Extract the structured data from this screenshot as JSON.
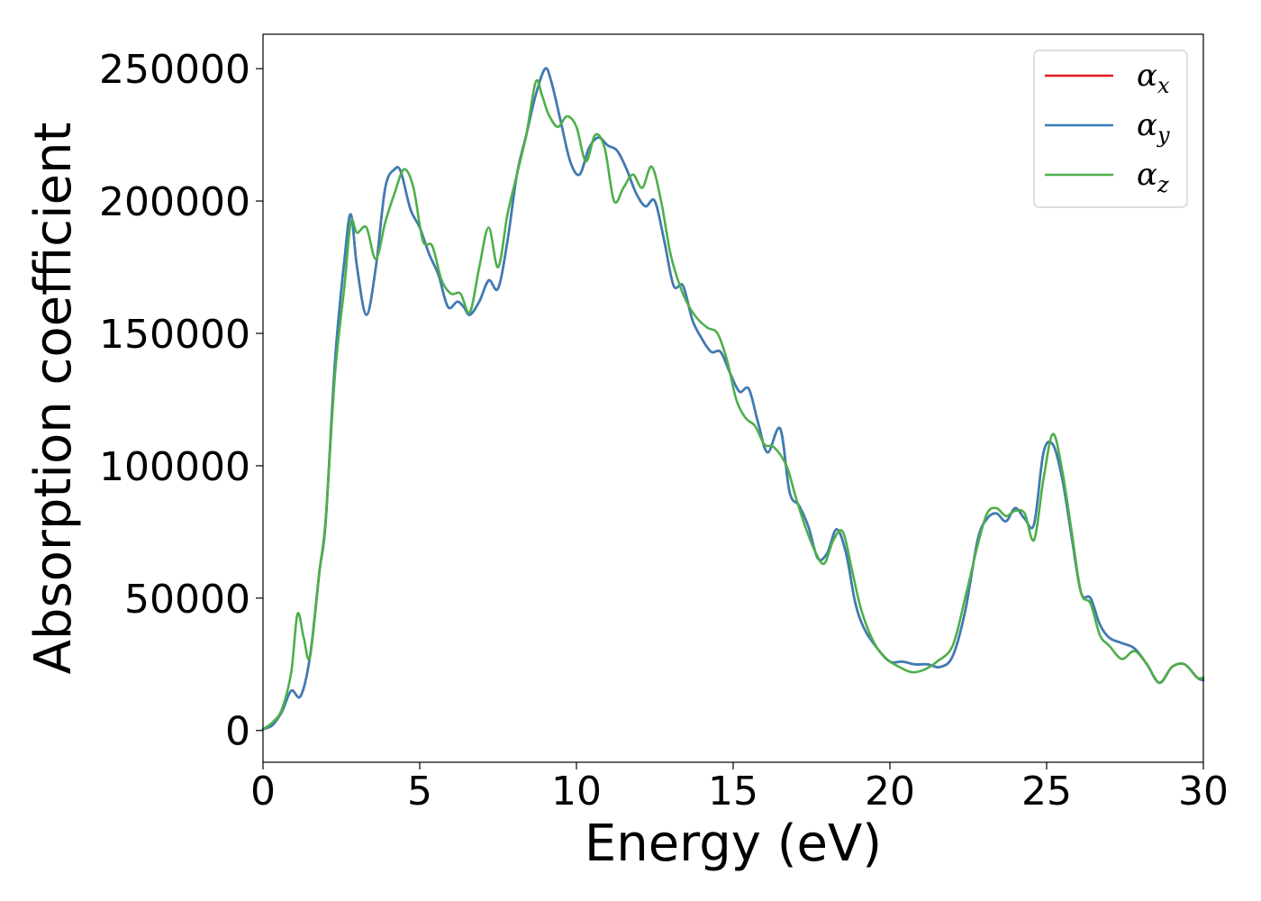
{
  "chart_data": {
    "type": "line",
    "title": "",
    "xlabel": "Energy (eV)",
    "ylabel": "Absorption coefficient",
    "xlim": [
      0,
      30
    ],
    "ylim": [
      -12000,
      263000
    ],
    "xticks": [
      0,
      5,
      10,
      15,
      20,
      25,
      30
    ],
    "yticks": [
      0,
      50000,
      100000,
      150000,
      200000,
      250000
    ],
    "grid": false,
    "legend_position": "top-right",
    "series": [
      {
        "name": "α",
        "sub": "x",
        "color": "#e41a1c",
        "x": [
          0,
          0.3,
          0.6,
          0.9,
          1.2,
          1.5,
          1.8,
          2.0,
          2.3,
          2.6,
          2.8,
          3.0,
          3.3,
          3.6,
          3.9,
          4.2,
          4.4,
          4.7,
          5.0,
          5.3,
          5.6,
          5.9,
          6.2,
          6.4,
          6.6,
          6.9,
          7.2,
          7.5,
          7.8,
          8.1,
          8.4,
          8.7,
          9.0,
          9.2,
          9.5,
          9.8,
          10.1,
          10.4,
          10.7,
          11.0,
          11.3,
          11.6,
          11.9,
          12.2,
          12.5,
          12.8,
          13.1,
          13.4,
          13.7,
          14.0,
          14.3,
          14.6,
          14.9,
          15.2,
          15.5,
          15.8,
          16.1,
          16.5,
          16.8,
          17.1,
          17.4,
          17.7,
          18.0,
          18.3,
          18.6,
          18.9,
          19.2,
          19.6,
          20.0,
          20.4,
          20.8,
          21.2,
          21.6,
          22.0,
          22.4,
          22.8,
          23.1,
          23.4,
          23.7,
          24.0,
          24.3,
          24.6,
          24.9,
          25.2,
          25.5,
          25.8,
          26.1,
          26.4,
          26.7,
          27.0,
          27.4,
          27.8,
          28.2,
          28.6,
          29.0,
          29.4,
          29.8,
          30.0
        ],
        "y": [
          500,
          2000,
          7000,
          15000,
          13000,
          28000,
          60000,
          79000,
          140000,
          178000,
          195000,
          175000,
          157000,
          175000,
          205000,
          212000,
          211000,
          197000,
          190000,
          180000,
          172000,
          160000,
          162000,
          160000,
          157000,
          162000,
          170000,
          167000,
          185000,
          210000,
          225000,
          240000,
          250000,
          245000,
          230000,
          215000,
          210000,
          220000,
          224000,
          221000,
          219000,
          212000,
          203000,
          198000,
          200000,
          185000,
          168000,
          168000,
          155000,
          148000,
          143000,
          143000,
          135000,
          128000,
          129000,
          116000,
          105000,
          114000,
          90000,
          85000,
          77000,
          65000,
          67000,
          76000,
          67000,
          48000,
          38000,
          31000,
          26000,
          26000,
          25000,
          25000,
          24000,
          28000,
          45000,
          72000,
          80000,
          82000,
          79000,
          84000,
          80000,
          78000,
          105000,
          108000,
          95000,
          73000,
          52000,
          50000,
          40000,
          35000,
          33000,
          31000,
          25000,
          18000,
          24000,
          25000,
          20000,
          19000
        ]
      },
      {
        "name": "α",
        "sub": "y",
        "color": "#377eb8",
        "x": [
          0,
          0.3,
          0.6,
          0.9,
          1.2,
          1.5,
          1.8,
          2.0,
          2.3,
          2.6,
          2.8,
          3.0,
          3.3,
          3.6,
          3.9,
          4.2,
          4.4,
          4.7,
          5.0,
          5.3,
          5.6,
          5.9,
          6.2,
          6.4,
          6.6,
          6.9,
          7.2,
          7.5,
          7.8,
          8.1,
          8.4,
          8.7,
          9.0,
          9.2,
          9.5,
          9.8,
          10.1,
          10.4,
          10.7,
          11.0,
          11.3,
          11.6,
          11.9,
          12.2,
          12.5,
          12.8,
          13.1,
          13.4,
          13.7,
          14.0,
          14.3,
          14.6,
          14.9,
          15.2,
          15.5,
          15.8,
          16.1,
          16.5,
          16.8,
          17.1,
          17.4,
          17.7,
          18.0,
          18.3,
          18.6,
          18.9,
          19.2,
          19.6,
          20.0,
          20.4,
          20.8,
          21.2,
          21.6,
          22.0,
          22.4,
          22.8,
          23.1,
          23.4,
          23.7,
          24.0,
          24.3,
          24.6,
          24.9,
          25.2,
          25.5,
          25.8,
          26.1,
          26.4,
          26.7,
          27.0,
          27.4,
          27.8,
          28.2,
          28.6,
          29.0,
          29.4,
          29.8,
          30.0
        ],
        "y": [
          500,
          2000,
          7000,
          15000,
          13000,
          28000,
          60000,
          79000,
          140000,
          178000,
          195000,
          175000,
          157000,
          175000,
          205000,
          212000,
          211000,
          197000,
          190000,
          180000,
          172000,
          160000,
          162000,
          160000,
          157000,
          162000,
          170000,
          167000,
          185000,
          210000,
          225000,
          240000,
          250000,
          245000,
          230000,
          215000,
          210000,
          220000,
          224000,
          221000,
          219000,
          212000,
          203000,
          198000,
          200000,
          185000,
          168000,
          168000,
          155000,
          148000,
          143000,
          143000,
          135000,
          128000,
          129000,
          116000,
          105000,
          114000,
          90000,
          85000,
          77000,
          65000,
          67000,
          76000,
          67000,
          48000,
          38000,
          31000,
          26000,
          26000,
          25000,
          25000,
          24000,
          28000,
          45000,
          72000,
          80000,
          82000,
          79000,
          84000,
          80000,
          78000,
          105000,
          108000,
          95000,
          73000,
          52000,
          50000,
          40000,
          35000,
          33000,
          31000,
          25000,
          18000,
          24000,
          25000,
          20000,
          19000
        ]
      },
      {
        "name": "α",
        "sub": "z",
        "color": "#4daf4a",
        "x": [
          0,
          0.3,
          0.6,
          0.9,
          1.1,
          1.3,
          1.5,
          1.8,
          2.0,
          2.3,
          2.6,
          2.8,
          3.0,
          3.3,
          3.6,
          3.9,
          4.2,
          4.5,
          4.8,
          5.1,
          5.4,
          5.7,
          6.0,
          6.3,
          6.6,
          6.9,
          7.2,
          7.5,
          7.8,
          8.1,
          8.4,
          8.7,
          8.9,
          9.1,
          9.4,
          9.7,
          10.0,
          10.3,
          10.6,
          10.9,
          11.2,
          11.5,
          11.8,
          12.1,
          12.4,
          12.7,
          13.0,
          13.3,
          13.6,
          13.9,
          14.2,
          14.5,
          14.8,
          15.1,
          15.4,
          15.7,
          16.0,
          16.3,
          16.7,
          17.0,
          17.3,
          17.6,
          17.9,
          18.2,
          18.5,
          18.8,
          19.1,
          19.5,
          19.9,
          20.3,
          20.7,
          21.1,
          21.5,
          22.0,
          22.4,
          22.8,
          23.1,
          23.4,
          23.7,
          24.0,
          24.3,
          24.6,
          24.9,
          25.2,
          25.5,
          25.8,
          26.1,
          26.4,
          26.7,
          27.0,
          27.4,
          27.8,
          28.2,
          28.6,
          29.0,
          29.4,
          29.8,
          30.0
        ],
        "y": [
          500,
          3000,
          8000,
          22000,
          44000,
          35000,
          28000,
          60000,
          80000,
          135000,
          168000,
          192000,
          188000,
          190000,
          178000,
          192000,
          203000,
          212000,
          205000,
          185000,
          183000,
          170000,
          165000,
          165000,
          158000,
          175000,
          190000,
          175000,
          195000,
          210000,
          225000,
          245000,
          240000,
          233000,
          228000,
          232000,
          228000,
          215000,
          225000,
          220000,
          200000,
          205000,
          210000,
          205000,
          213000,
          200000,
          180000,
          168000,
          160000,
          155000,
          152000,
          150000,
          140000,
          125000,
          118000,
          115000,
          108000,
          107000,
          100000,
          88000,
          77000,
          68000,
          63000,
          72000,
          75000,
          60000,
          45000,
          33000,
          27000,
          24000,
          22000,
          23000,
          26000,
          32000,
          50000,
          70000,
          82000,
          84000,
          81000,
          83000,
          82000,
          72000,
          95000,
          112000,
          98000,
          75000,
          52000,
          48000,
          36000,
          32000,
          27000,
          30000,
          25000,
          18000,
          24000,
          25000,
          20000,
          20000
        ]
      }
    ]
  }
}
